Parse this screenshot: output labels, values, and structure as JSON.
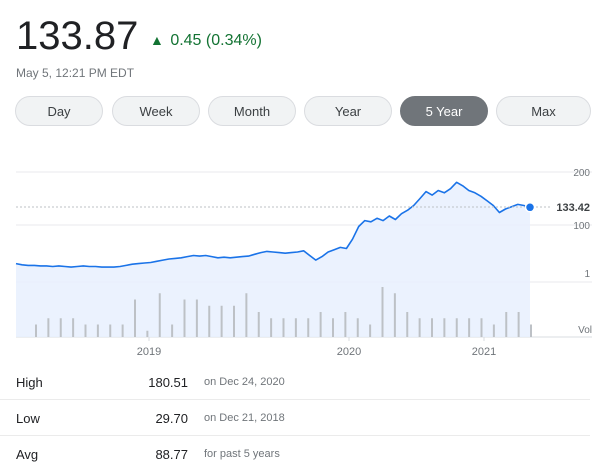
{
  "quote": {
    "price": "133.87",
    "change_arrow": "▲",
    "change": "0.45 (0.34%)",
    "timestamp": "May 5, 12:21 PM EDT",
    "positive_color": "#137333"
  },
  "tabs": [
    {
      "label": "Day",
      "active": false
    },
    {
      "label": "Week",
      "active": false
    },
    {
      "label": "Month",
      "active": false
    },
    {
      "label": "Year",
      "active": false
    },
    {
      "label": "5 Year",
      "active": true
    },
    {
      "label": "Max",
      "active": false
    }
  ],
  "chart_data": {
    "type": "line",
    "title": "",
    "xlabel": "",
    "ylabel": "",
    "y_scale": "log",
    "y_ticks": [
      "200",
      "100",
      "1"
    ],
    "x_ticks": [
      "2019",
      "2020",
      "2021"
    ],
    "volume_label": "Vol",
    "current_value": "133.42",
    "reference_line": 133.42,
    "line_color": "#1a73e8",
    "series": [
      {
        "values": [
          36,
          34,
          33,
          33,
          32,
          32,
          31,
          32,
          31,
          30,
          31,
          32,
          31,
          31,
          30,
          30,
          30,
          31,
          33,
          35,
          36,
          37,
          38,
          40,
          42,
          44,
          45,
          46,
          48,
          50,
          49,
          50,
          48,
          46,
          47,
          46,
          47,
          48,
          49,
          52,
          55,
          57,
          56,
          55,
          54,
          55,
          56,
          58,
          50,
          42,
          48,
          56,
          60,
          64,
          62,
          78,
          100,
          110,
          108,
          114,
          110,
          118,
          112,
          122,
          128,
          136,
          148,
          160,
          154,
          162,
          158,
          165,
          176,
          170,
          162,
          158,
          152,
          144,
          136,
          124,
          130,
          134,
          138,
          136,
          133
        ]
      }
    ],
    "volume_bars": [
      2,
      3,
      3,
      3,
      2,
      2,
      2,
      2,
      6,
      1,
      7,
      2,
      6,
      6,
      5,
      5,
      5,
      7,
      4,
      3,
      3,
      3,
      3,
      4,
      3,
      4,
      3,
      2,
      8,
      7,
      4,
      3,
      3,
      3,
      3,
      3,
      3,
      2,
      4,
      4,
      2
    ]
  },
  "stats": [
    {
      "label": "High",
      "value": "180.51",
      "note": "on Dec 24, 2020"
    },
    {
      "label": "Low",
      "value": "29.70",
      "note": "on Dec 21, 2018"
    },
    {
      "label": "Avg",
      "value": "88.77",
      "note": "for past 5 years"
    }
  ]
}
